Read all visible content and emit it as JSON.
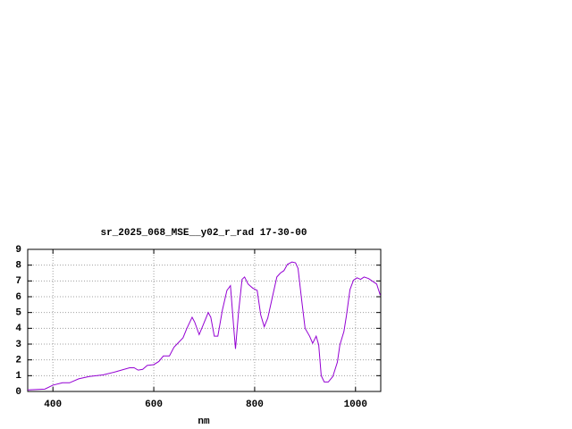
{
  "chart_data": {
    "type": "line",
    "title": "sr_2025_068_MSE__y02_r_rad 17-30-00",
    "x_label": "nm",
    "color": "#9400d3",
    "grid": true,
    "xlim": [
      350,
      1050
    ],
    "ylim": [
      0,
      9
    ],
    "xticks": [
      400,
      600,
      800,
      1000
    ],
    "yticks": [
      0,
      1,
      2,
      3,
      4,
      5,
      6,
      7,
      8,
      9
    ],
    "x": [
      350,
      384,
      400,
      419,
      433,
      451,
      472,
      499,
      525,
      552,
      561,
      569,
      578,
      587,
      600,
      610,
      619,
      631,
      640,
      649,
      658,
      665,
      676,
      681,
      690,
      699,
      708,
      713,
      720,
      727,
      736,
      745,
      752,
      759,
      762,
      768,
      775,
      780,
      787,
      796,
      805,
      812,
      819,
      826,
      835,
      844,
      851,
      858,
      865,
      874,
      881,
      886,
      893,
      900,
      909,
      915,
      922,
      927,
      932,
      938,
      946,
      955,
      964,
      969,
      977,
      982,
      989,
      996,
      1003,
      1010,
      1017,
      1026,
      1035,
      1042,
      1049
    ],
    "values": [
      0.1,
      0.15,
      0.4,
      0.55,
      0.55,
      0.8,
      0.95,
      1.05,
      1.25,
      1.5,
      1.5,
      1.35,
      1.4,
      1.65,
      1.7,
      1.9,
      2.25,
      2.25,
      2.8,
      3.1,
      3.4,
      3.95,
      4.7,
      4.4,
      3.6,
      4.3,
      5.0,
      4.7,
      3.5,
      3.5,
      5.15,
      6.4,
      6.7,
      3.85,
      2.7,
      5.0,
      7.1,
      7.25,
      6.8,
      6.55,
      6.4,
      4.85,
      4.1,
      4.65,
      5.95,
      7.25,
      7.5,
      7.65,
      8.05,
      8.2,
      8.15,
      7.8,
      5.85,
      4.0,
      3.5,
      3.05,
      3.5,
      2.95,
      1.0,
      0.6,
      0.6,
      0.95,
      1.85,
      2.95,
      3.8,
      4.8,
      6.45,
      7.05,
      7.2,
      7.1,
      7.25,
      7.15,
      6.95,
      6.8,
      6.1
    ]
  }
}
